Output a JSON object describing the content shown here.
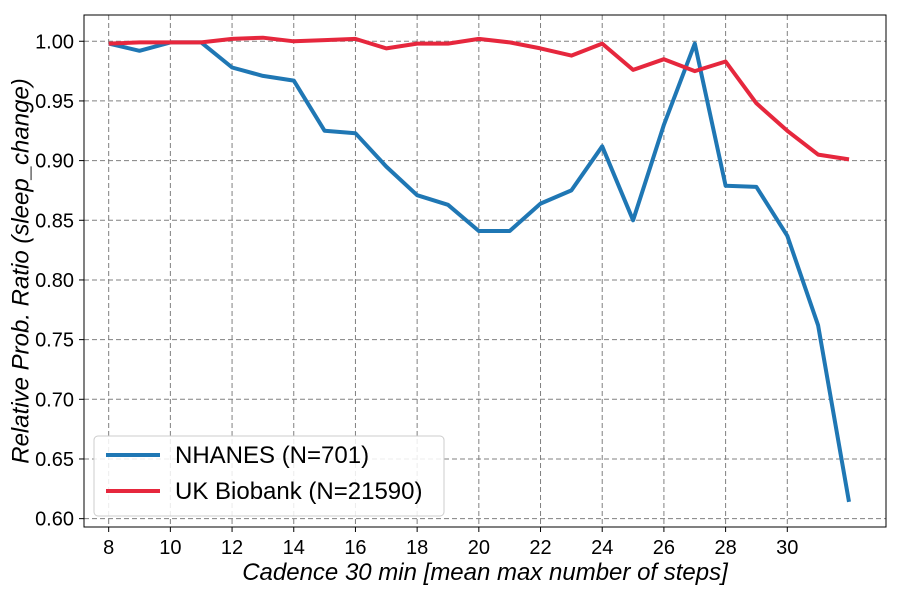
{
  "chart_data": {
    "type": "line",
    "title": "",
    "xlabel": "Cadence 30 min [mean max number of steps]",
    "ylabel": "Relative Prob. Ratio (sleep_change)",
    "xlim": [
      7.2,
      33.2
    ],
    "ylim": [
      0.593,
      1.022
    ],
    "xticks": [
      8,
      10,
      12,
      14,
      16,
      18,
      20,
      22,
      24,
      26,
      28,
      30
    ],
    "yticks": [
      0.6,
      0.65,
      0.7,
      0.75,
      0.8,
      0.85,
      0.9,
      0.95,
      1.0
    ],
    "xtick_labels": [
      "8",
      "10",
      "12",
      "14",
      "16",
      "18",
      "20",
      "22",
      "24",
      "26",
      "28",
      "30"
    ],
    "ytick_labels": [
      "0.60",
      "0.65",
      "0.70",
      "0.75",
      "0.80",
      "0.85",
      "0.90",
      "0.95",
      "1.00"
    ],
    "grid": true,
    "legend_position": "lower-left",
    "x": [
      8,
      9,
      10,
      11,
      12,
      13,
      14,
      15,
      16,
      17,
      18,
      19,
      20,
      21,
      22,
      23,
      24,
      25,
      26,
      27,
      28,
      29,
      30,
      31,
      32
    ],
    "series": [
      {
        "name": "NHANES (N=701)",
        "color": "#1f77b4",
        "values": [
          0.998,
          0.992,
          0.999,
          0.999,
          0.978,
          0.971,
          0.967,
          0.925,
          0.923,
          0.895,
          0.871,
          0.863,
          0.841,
          0.841,
          0.864,
          0.875,
          0.912,
          0.85,
          0.93,
          0.998,
          0.879,
          0.878,
          0.837,
          0.762,
          0.614
        ]
      },
      {
        "name": "UK Biobank (N=21590)",
        "color": "#e6273d",
        "values": [
          0.998,
          0.999,
          0.999,
          0.999,
          1.002,
          1.003,
          1.0,
          1.001,
          1.002,
          0.994,
          0.998,
          0.998,
          1.002,
          0.999,
          0.994,
          0.988,
          0.998,
          0.976,
          0.985,
          0.975,
          0.983,
          0.948,
          0.925,
          0.905,
          0.901
        ]
      }
    ]
  }
}
